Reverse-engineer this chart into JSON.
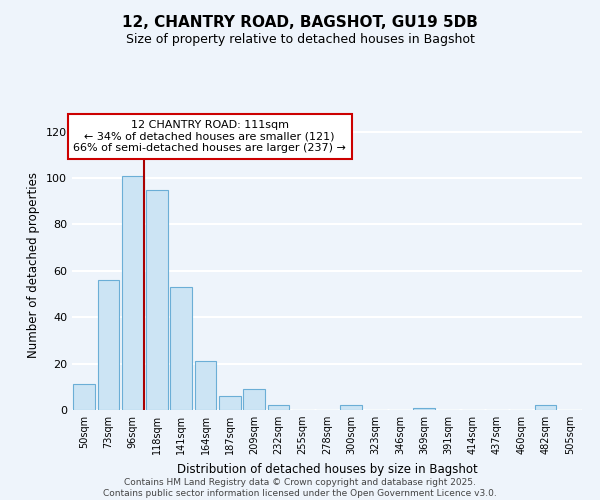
{
  "title": "12, CHANTRY ROAD, BAGSHOT, GU19 5DB",
  "subtitle": "Size of property relative to detached houses in Bagshot",
  "xlabel": "Distribution of detached houses by size in Bagshot",
  "ylabel": "Number of detached properties",
  "bar_labels": [
    "50sqm",
    "73sqm",
    "96sqm",
    "118sqm",
    "141sqm",
    "164sqm",
    "187sqm",
    "209sqm",
    "232sqm",
    "255sqm",
    "278sqm",
    "300sqm",
    "323sqm",
    "346sqm",
    "369sqm",
    "391sqm",
    "414sqm",
    "437sqm",
    "460sqm",
    "482sqm",
    "505sqm"
  ],
  "bar_values": [
    11,
    56,
    101,
    95,
    53,
    21,
    6,
    9,
    2,
    0,
    0,
    2,
    0,
    0,
    1,
    0,
    0,
    0,
    0,
    2,
    0
  ],
  "bar_color": "#cce4f4",
  "bar_edge_color": "#6baed6",
  "ylim": [
    0,
    125
  ],
  "yticks": [
    0,
    20,
    40,
    60,
    80,
    100,
    120
  ],
  "property_line_color": "#aa0000",
  "annotation_title": "12 CHANTRY ROAD: 111sqm",
  "annotation_line1": "← 34% of detached houses are smaller (121)",
  "annotation_line2": "66% of semi-detached houses are larger (237) →",
  "annotation_box_color": "#ffffff",
  "annotation_box_edge": "#cc0000",
  "footer1": "Contains HM Land Registry data © Crown copyright and database right 2025.",
  "footer2": "Contains public sector information licensed under the Open Government Licence v3.0.",
  "bg_color": "#eef4fb",
  "grid_color": "#ffffff"
}
